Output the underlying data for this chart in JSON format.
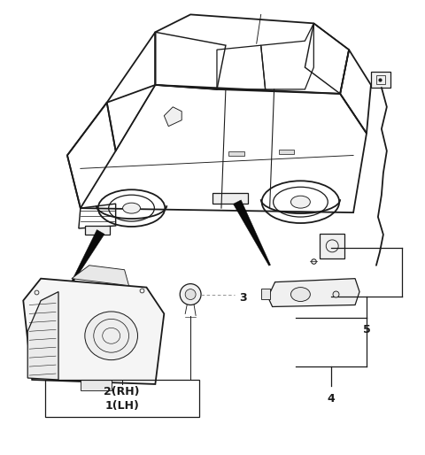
{
  "bg": "#ffffff",
  "lc": "#1a1a1a",
  "dark": "#111111",
  "gray": "#888888",
  "light_gray": "#dddddd",
  "fig_width": 4.8,
  "fig_height": 5.14,
  "dpi": 100,
  "label_1": "1(LH)",
  "label_2": "2(RH)",
  "label_3": "3",
  "label_4": "4",
  "label_5": "5"
}
